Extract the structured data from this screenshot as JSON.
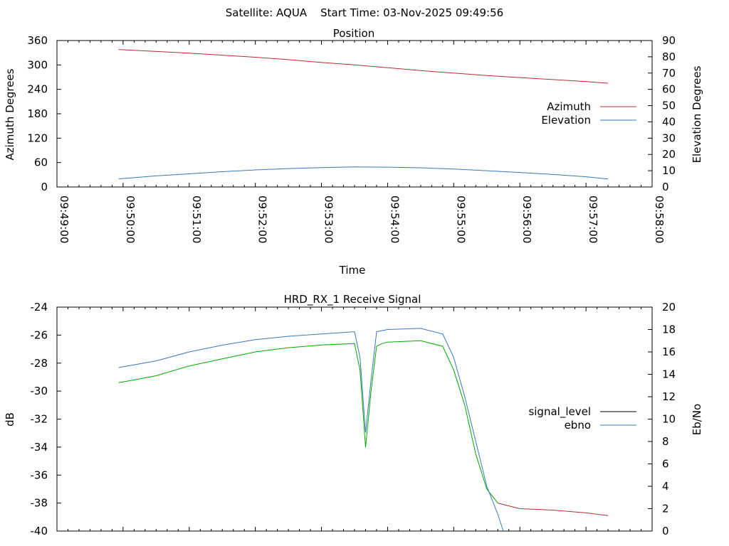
{
  "page_title": "Satellite: AQUA    Start Time: 03-Nov-2025 09:49:56",
  "colors": {
    "azimuth": "#b03030",
    "elevation": "#3a78b8",
    "signal_green": "#00aa00",
    "signal_red": "#b03030",
    "ebno": "#3a78b8",
    "legend_signal_level": "#000000"
  },
  "chart_data": [
    {
      "type": "line",
      "title": "Position",
      "xlabel": "Time",
      "ylabel": "Azimuth Degrees",
      "y2label": "Elevation Degrees",
      "x_ticks": [
        "09:49:00",
        "09:50:00",
        "09:51:00",
        "09:52:00",
        "09:53:00",
        "09:54:00",
        "09:55:00",
        "09:56:00",
        "09:57:00",
        "09:58:00"
      ],
      "xlim": [
        "09:49:00",
        "09:58:00"
      ],
      "ylim": [
        0,
        360
      ],
      "y_ticks": [
        0,
        60,
        120,
        180,
        240,
        300,
        360
      ],
      "y2lim": [
        0,
        90
      ],
      "y2_ticks": [
        0,
        10,
        20,
        30,
        40,
        50,
        60,
        70,
        80,
        90
      ],
      "legend": "right",
      "series": [
        {
          "name": "Azimuth",
          "axis": "y",
          "x": [
            "09:49:56",
            "09:50:30",
            "09:51:00",
            "09:51:30",
            "09:52:00",
            "09:52:30",
            "09:53:00",
            "09:53:30",
            "09:54:00",
            "09:54:30",
            "09:55:00",
            "09:55:30",
            "09:56:00",
            "09:56:30",
            "09:57:00",
            "09:57:20"
          ],
          "values": [
            338,
            333,
            329,
            324,
            319,
            313,
            306,
            300,
            293,
            286,
            280,
            274,
            269,
            264,
            259,
            255
          ]
        },
        {
          "name": "Elevation",
          "axis": "y2",
          "x": [
            "09:49:56",
            "09:50:30",
            "09:51:00",
            "09:51:30",
            "09:52:00",
            "09:52:30",
            "09:53:00",
            "09:53:30",
            "09:54:00",
            "09:54:30",
            "09:55:00",
            "09:55:30",
            "09:56:00",
            "09:56:30",
            "09:57:00",
            "09:57:20"
          ],
          "values": [
            5.0,
            6.8,
            8.1,
            9.4,
            10.5,
            11.3,
            11.9,
            12.3,
            12.2,
            11.8,
            11.0,
            10.0,
            8.9,
            7.7,
            6.3,
            4.9
          ]
        }
      ]
    },
    {
      "type": "line",
      "title": "HRD_RX_1 Receive Signal",
      "ylabel": "dB",
      "y2label": "Eb/No",
      "xlim": [
        "09:49:00",
        "09:58:00"
      ],
      "ylim": [
        -40,
        -24
      ],
      "y_ticks": [
        -40,
        -38,
        -36,
        -34,
        -32,
        -30,
        -28,
        -26,
        -24
      ],
      "y2lim": [
        0,
        20
      ],
      "y2_ticks": [
        0,
        2,
        4,
        6,
        8,
        10,
        12,
        14,
        16,
        18,
        20
      ],
      "legend": "right",
      "series": [
        {
          "name": "signal_level",
          "axis": "y",
          "x": [
            "09:49:56",
            "09:50:10",
            "09:50:30",
            "09:51:00",
            "09:51:30",
            "09:52:00",
            "09:52:30",
            "09:53:00",
            "09:53:30",
            "09:53:35",
            "09:53:40",
            "09:53:45",
            "09:53:50",
            "09:53:55",
            "09:54:00",
            "09:54:30",
            "09:54:50",
            "09:55:00",
            "09:55:10",
            "09:55:20",
            "09:55:30",
            "09:55:40",
            "09:55:50",
            "09:56:00",
            "09:56:30",
            "09:57:00",
            "09:57:20"
          ],
          "values": [
            -29.4,
            -29.2,
            -28.9,
            -28.2,
            -27.7,
            -27.2,
            -26.9,
            -26.7,
            -26.6,
            -28.5,
            -34.0,
            -30.0,
            -26.8,
            -26.6,
            -26.5,
            -26.4,
            -26.8,
            -28.5,
            -31.0,
            -34.5,
            -37.0,
            -38.0,
            -38.2,
            -38.4,
            -38.5,
            -38.7,
            -38.9
          ]
        },
        {
          "name": "ebno",
          "axis": "y2",
          "x": [
            "09:49:56",
            "09:50:30",
            "09:51:00",
            "09:51:30",
            "09:52:00",
            "09:52:30",
            "09:53:00",
            "09:53:30",
            "09:53:35",
            "09:53:40",
            "09:53:45",
            "09:53:50",
            "09:54:00",
            "09:54:30",
            "09:54:50",
            "09:55:00",
            "09:55:10",
            "09:55:20",
            "09:55:30",
            "09:55:40",
            "09:55:45"
          ],
          "values": [
            14.6,
            15.2,
            16.0,
            16.6,
            17.1,
            17.4,
            17.6,
            17.8,
            15.5,
            8.8,
            13.5,
            17.8,
            18.0,
            18.1,
            17.6,
            15.5,
            12.0,
            8.0,
            4.0,
            1.5,
            0.0
          ]
        }
      ]
    }
  ]
}
